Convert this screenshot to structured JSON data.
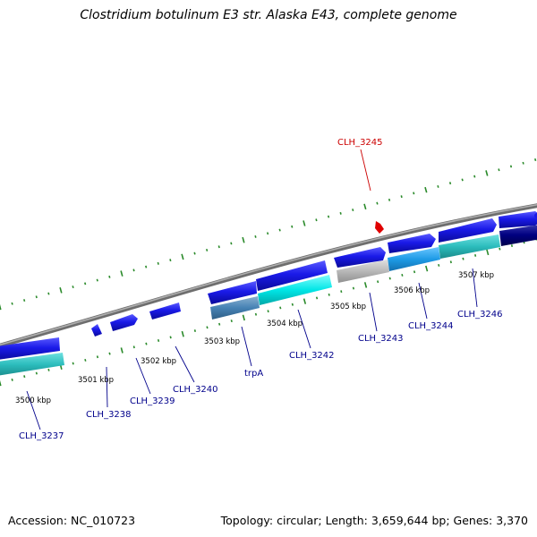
{
  "title": "Clostridium botulinum E3 str. Alaska E43, complete genome",
  "footer": {
    "accession": "Accession: NC_010723",
    "summary": "Topology: circular; Length: 3,659,644 bp; Genes: 3,370"
  },
  "colors": {
    "backbone": "#8c8c8c",
    "tick": "#2a8a2a",
    "gene_blue": "#1a1ae8",
    "label_blue": "#00008b",
    "label_red": "#cc0000",
    "cyan": "#00e6e6",
    "teal": "#2bbcbc",
    "light_blue": "#1e9be6",
    "steel_blue": "#4682b4",
    "grey": "#b8b8b8",
    "navy": "#000080"
  },
  "scale_labels": [
    "3500 kbp",
    "3501 kbp",
    "3502 kbp",
    "3503 kbp",
    "3504 kbp",
    "3505 kbp",
    "3506 kbp",
    "3507 kbp"
  ],
  "gene_labels": [
    {
      "text": "CLH_3237",
      "color": "blue"
    },
    {
      "text": "CLH_3238",
      "color": "blue"
    },
    {
      "text": "CLH_3239",
      "color": "blue"
    },
    {
      "text": "CLH_3240",
      "color": "blue"
    },
    {
      "text": "trpA",
      "color": "blue"
    },
    {
      "text": "CLH_3242",
      "color": "blue"
    },
    {
      "text": "CLH_3243",
      "color": "blue"
    },
    {
      "text": "CLH_3244",
      "color": "blue"
    },
    {
      "text": "CLH_3246",
      "color": "blue"
    },
    {
      "text": "CLH_3245",
      "color": "red"
    }
  ]
}
